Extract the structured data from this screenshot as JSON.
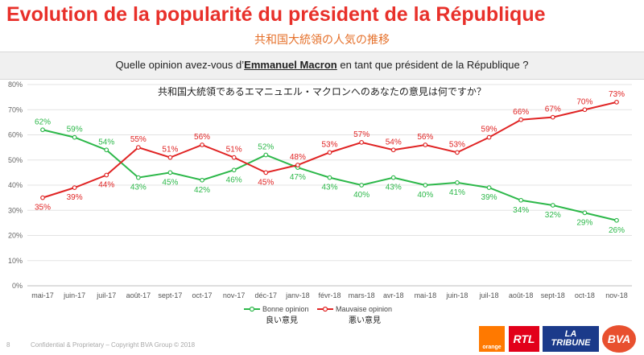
{
  "header": {
    "title": "Evolution de la popularité du président de la République",
    "subtitle": "共和国大統領の人気の推移"
  },
  "question": {
    "before": "Quelle opinion avez-vous d’",
    "name": "Emmanuel Macron",
    "after": " en tant que président de la République ?"
  },
  "footer": {
    "page_number": "8",
    "confidential": "Confidential & Proprietary – Copyright BVA Group ©  2018"
  },
  "logos": {
    "orange": "orange",
    "rtl": "RTL",
    "tribune_line1": "LA",
    "tribune_line2": "TRIBUNE",
    "bva": "BVA"
  },
  "colors": {
    "title": "#e8302a",
    "subtitle": "#e5702a",
    "bonne": "#2db84a",
    "mauvaise": "#e02424"
  },
  "chart_data": {
    "type": "line",
    "title": "共和国大統領であるエマニュエル・マクロンへのあなたの意見は何ですか？",
    "xlabel": "",
    "ylabel": "",
    "ylim": [
      0,
      80
    ],
    "yticks": [
      "0%",
      "10%",
      "20%",
      "30%",
      "40%",
      "50%",
      "60%",
      "70%",
      "80%"
    ],
    "grid": true,
    "legend_position": "bottom-center",
    "categories": [
      "mai-17",
      "juin-17",
      "juil-17",
      "août-17",
      "sept-17",
      "oct-17",
      "nov-17",
      "déc-17",
      "janv-18",
      "févr-18",
      "mars-18",
      "avr-18",
      "mai-18",
      "juin-18",
      "juil-18",
      "août-18",
      "sept-18",
      "oct-18",
      "nov-18"
    ],
    "series": [
      {
        "name": "Bonne opinion",
        "subtitle": "良い意見",
        "color": "#2db84a",
        "values": [
          62,
          59,
          54,
          43,
          45,
          42,
          46,
          52,
          47,
          43,
          40,
          43,
          40,
          41,
          39,
          34,
          32,
          29,
          26
        ],
        "labels": [
          "62%",
          "59%",
          "54%",
          "43%",
          "45%",
          "42%",
          "46%",
          "52%",
          "47%",
          "43%",
          "40%",
          "43%",
          "40%",
          "41%",
          "39%",
          "34%",
          "32%",
          "29%",
          "26%"
        ]
      },
      {
        "name": "Mauvaise opinion",
        "subtitle": "悪い意見",
        "color": "#e02424",
        "values": [
          35,
          39,
          44,
          55,
          51,
          56,
          51,
          45,
          48,
          53,
          57,
          54,
          56,
          53,
          59,
          66,
          67,
          70,
          73
        ],
        "labels": [
          "35%",
          "39%",
          "44%",
          "55%",
          "51%",
          "56%",
          "51%",
          "45%",
          "48%",
          "53%",
          "57%",
          "54%",
          "56%",
          "53%",
          "59%",
          "66%",
          "67%",
          "70%",
          "73%"
        ]
      }
    ]
  }
}
